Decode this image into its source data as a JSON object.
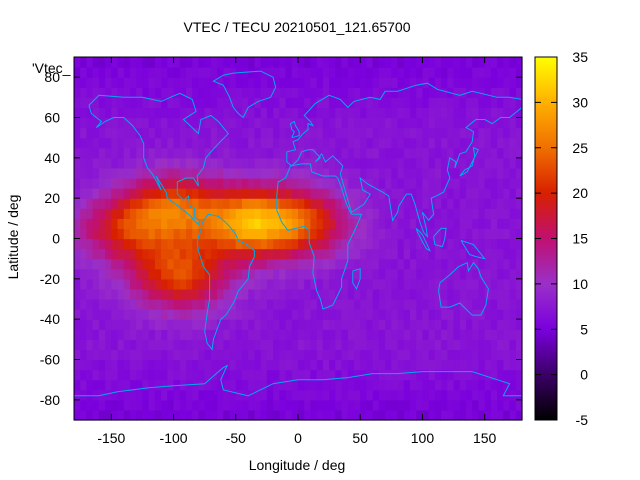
{
  "chart_data": {
    "type": "heatmap",
    "title": "VTEC / TECU 20210501_121.65700",
    "xlabel": "Longitude / deg",
    "ylabel": "Latitude / deg",
    "xlim": [
      -180,
      180
    ],
    "ylim": [
      -90,
      90
    ],
    "xticks": [
      -150,
      -100,
      -50,
      0,
      50,
      100,
      150
    ],
    "yticks": [
      -80,
      -60,
      -40,
      -20,
      0,
      20,
      40,
      60,
      80
    ],
    "key_label": "'Vtec_",
    "colorbar": {
      "range": [
        -5,
        35
      ],
      "ticks": [
        -5,
        0,
        5,
        10,
        15,
        20,
        25,
        30,
        35
      ],
      "palette": [
        "#000000",
        "#3b0066",
        "#7a00dd",
        "#9a30c8",
        "#c01070",
        "#d82000",
        "#f07000",
        "#ffb000",
        "#ffff00"
      ]
    },
    "overlay": "coastlines",
    "coastline_color": "#00aaee",
    "field": {
      "background_tec": 7,
      "cells_deg": 5,
      "peaks": [
        {
          "region": "tropical Atlantic / northern South America",
          "lon": -40,
          "lat": 8,
          "tec": 27
        },
        {
          "region": "Central America / Pacific",
          "lon": -100,
          "lat": 15,
          "tec": 22
        },
        {
          "region": "southern anomaly crest",
          "lon": -95,
          "lat": -18,
          "tec": 22
        },
        {
          "region": "West Africa",
          "lon": 5,
          "lat": 8,
          "tec": 20
        },
        {
          "region": "eastern Pacific band",
          "lon": -140,
          "lat": 5,
          "tec": 18
        }
      ],
      "high_latitude_min": 4
    }
  }
}
